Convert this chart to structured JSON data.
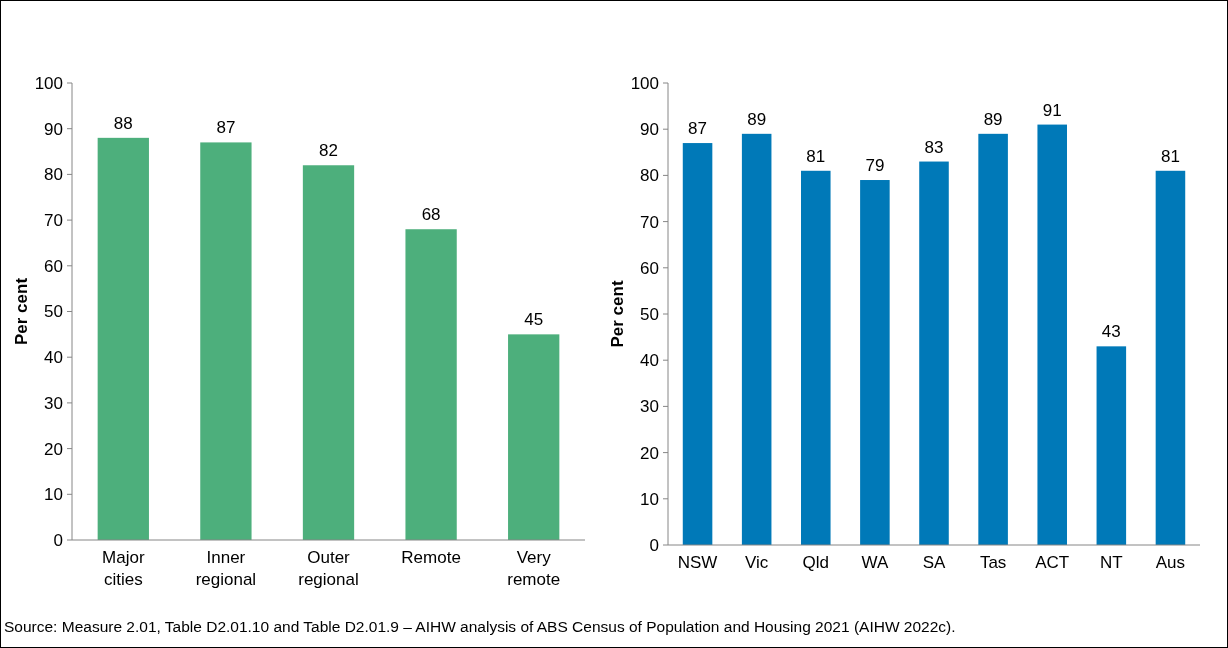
{
  "chart_data": [
    {
      "type": "bar",
      "categories": [
        "Major cities",
        "Inner regional",
        "Outer regional",
        "Remote",
        "Very remote"
      ],
      "values": [
        88,
        87,
        82,
        68,
        45
      ],
      "color": "#4daf7c",
      "ylabel": "Per cent",
      "ylim": [
        0,
        100
      ],
      "yticks": [
        0,
        10,
        20,
        30,
        40,
        50,
        60,
        70,
        80,
        90,
        100
      ],
      "data_labels": true
    },
    {
      "type": "bar",
      "categories": [
        "NSW",
        "Vic",
        "Qld",
        "WA",
        "SA",
        "Tas",
        "ACT",
        "NT",
        "Aus"
      ],
      "values": [
        87,
        89,
        81,
        79,
        83,
        89,
        91,
        43,
        81
      ],
      "color": "#0079b8",
      "ylabel": "Per cent",
      "ylim": [
        0,
        100
      ],
      "yticks": [
        0,
        10,
        20,
        30,
        40,
        50,
        60,
        70,
        80,
        90,
        100
      ],
      "data_labels": true,
      "annotations": [
        "Source: Measure 2.01, Table D2.01.10 and Table D2.01.9 – AIHW analysis of ABS Census of Population and Housing 2021 (AIHW 2022c)."
      ]
    }
  ]
}
